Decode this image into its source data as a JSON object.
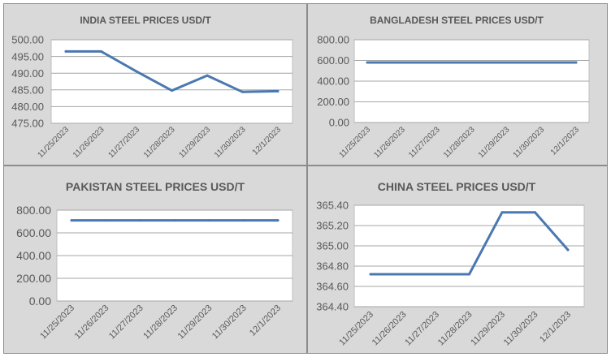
{
  "chart_data": [
    {
      "type": "line",
      "title": "INDIA STEEL PRICES USD/T",
      "categories": [
        "11/25/2023",
        "11/26/2023",
        "11/27/2023",
        "11/28/2023",
        "11/29/2023",
        "11/30/2023",
        "12/1/2023"
      ],
      "values": [
        496.5,
        496.5,
        490.5,
        484.8,
        489.3,
        484.4,
        484.6
      ],
      "yticks": [
        "500.00",
        "495.00",
        "490.00",
        "485.00",
        "480.00",
        "475.00"
      ],
      "ylim": [
        475,
        500
      ],
      "grid": true,
      "color": "#4a78b0"
    },
    {
      "type": "line",
      "title": "BANGLADESH STEEL PRICES USD/T",
      "categories": [
        "11/25/2023",
        "11/26/2023",
        "11/27/2023",
        "11/28/2023",
        "11/29/2023",
        "11/30/2023",
        "12/1/2023"
      ],
      "values": [
        580,
        580,
        580,
        580,
        580,
        580,
        580
      ],
      "yticks": [
        "800.00",
        "600.00",
        "400.00",
        "200.00",
        "0.00"
      ],
      "ylim": [
        0,
        800
      ],
      "grid": true,
      "color": "#4a78b0"
    },
    {
      "type": "line",
      "title": "PAKISTAN STEEL PRICES USD/T",
      "categories": [
        "11/25/2023",
        "11/26/2023",
        "11/27/2023",
        "11/28/2023",
        "11/29/2023",
        "11/30/2023",
        "12/1/2023"
      ],
      "values": [
        710,
        710,
        710,
        710,
        710,
        710,
        710
      ],
      "yticks": [
        "800.00",
        "600.00",
        "400.00",
        "200.00",
        "0.00"
      ],
      "ylim": [
        0,
        800
      ],
      "grid": true,
      "color": "#4a78b0"
    },
    {
      "type": "line",
      "title": "CHINA STEEL PRICES USD/T",
      "categories": [
        "11/25/2023",
        "11/26/2023",
        "11/27/2023",
        "11/28/2023",
        "11/29/2023",
        "11/30/2023",
        "12/1/2023"
      ],
      "values": [
        364.72,
        364.72,
        364.72,
        364.72,
        365.33,
        365.33,
        364.96
      ],
      "yticks": [
        "365.40",
        "365.20",
        "365.00",
        "364.80",
        "364.60",
        "364.40"
      ],
      "ylim": [
        364.4,
        365.4
      ],
      "grid": true,
      "color": "#4a78b0"
    }
  ]
}
